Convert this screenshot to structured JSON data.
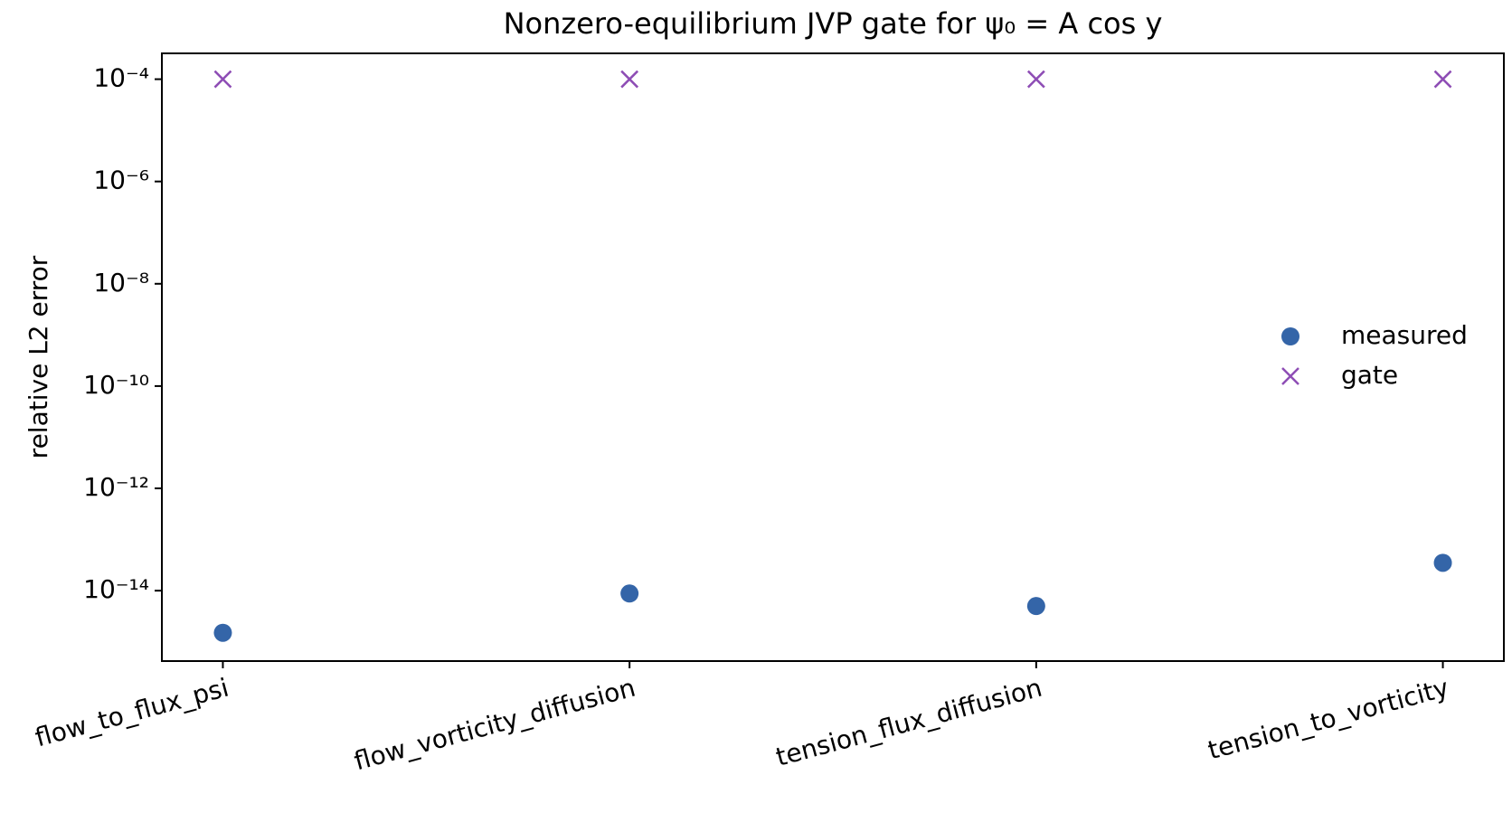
{
  "chart_data": {
    "type": "scatter",
    "title": "Nonzero-equilibrium JVP gate for ψ₀ = A cos y",
    "y_label": "relative L2 error",
    "categories": [
      "flow_to_flux_psi",
      "flow_vorticity_diffusion",
      "tension_flux_diffusion",
      "tension_to_vorticity"
    ],
    "series": [
      {
        "name": "measured",
        "color": "#3465a8",
        "marker": "circle",
        "values": [
          1.5e-15,
          8.8e-15,
          5e-15,
          3.5e-14
        ]
      },
      {
        "name": "gate",
        "color": "#8e4db5",
        "marker": "x",
        "values": [
          0.0001,
          0.0001,
          0.0001,
          0.0001
        ]
      }
    ],
    "y_log": true,
    "ylim": [
      4.2e-16,
      0.00032
    ],
    "yticks": [
      {
        "value": 0.0001,
        "label": "10⁻⁴"
      },
      {
        "value": 1e-06,
        "label": "10⁻⁶"
      },
      {
        "value": 1e-08,
        "label": "10⁻⁸"
      },
      {
        "value": 1e-10,
        "label": "10⁻¹⁰"
      },
      {
        "value": 1e-12,
        "label": "10⁻¹²"
      },
      {
        "value": 1e-14,
        "label": "10⁻¹⁴"
      }
    ],
    "legend": "right"
  }
}
